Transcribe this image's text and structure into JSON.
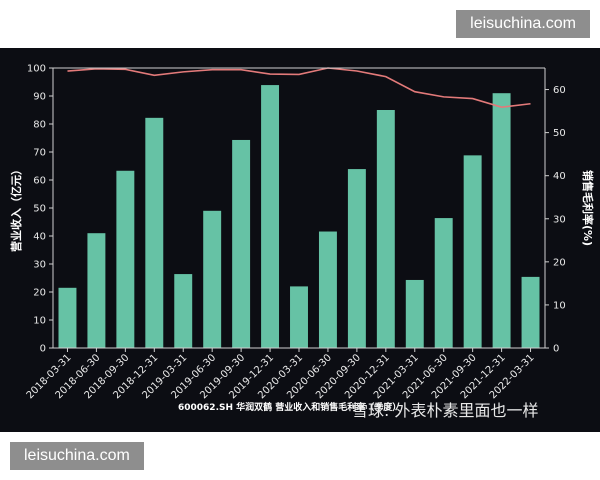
{
  "watermarks": {
    "top": "leisuchina.com",
    "bottom": "leisuchina.com"
  },
  "credit": "雪球: 外表朴素里面也一样",
  "chart_data": {
    "type": "bar",
    "title": "600062.SH 华润双鹤 营业收入和销售毛利率（季度）",
    "categories": [
      "2018-03-31",
      "2018-06-30",
      "2018-09-30",
      "2018-12-31",
      "2019-03-31",
      "2019-06-30",
      "2019-09-30",
      "2019-12-31",
      "2020-03-31",
      "2020-06-30",
      "2020-09-30",
      "2020-12-31",
      "2021-03-31",
      "2021-06-30",
      "2021-09-30",
      "2021-12-31",
      "2022-03-31"
    ],
    "ylabel": "营业收入（亿元）",
    "y2label": "销售毛利率(%)",
    "ylim": [
      0,
      100
    ],
    "y_ticks": [
      0,
      10,
      20,
      30,
      40,
      50,
      60,
      70,
      80,
      90,
      100
    ],
    "y2lim": [
      0,
      65
    ],
    "y2_ticks": [
      0,
      10,
      20,
      30,
      40,
      50,
      60
    ],
    "grid": false,
    "series": [
      {
        "kind": "bar",
        "axis": "left",
        "color": "#66c2a5",
        "values": [
          21.5,
          41,
          63.3,
          82.2,
          26.4,
          49,
          74.3,
          93.9,
          22,
          41.6,
          63.9,
          85,
          24.3,
          46.4,
          68.8,
          91,
          25.4
        ]
      },
      {
        "kind": "line",
        "axis": "right",
        "color": "#e37a7a",
        "values": [
          64.3,
          64.8,
          64.7,
          63.3,
          64.1,
          64.6,
          64.6,
          63.6,
          63.5,
          65,
          64.3,
          63,
          59.5,
          58.3,
          57.9,
          55.9,
          56.7
        ]
      }
    ]
  }
}
